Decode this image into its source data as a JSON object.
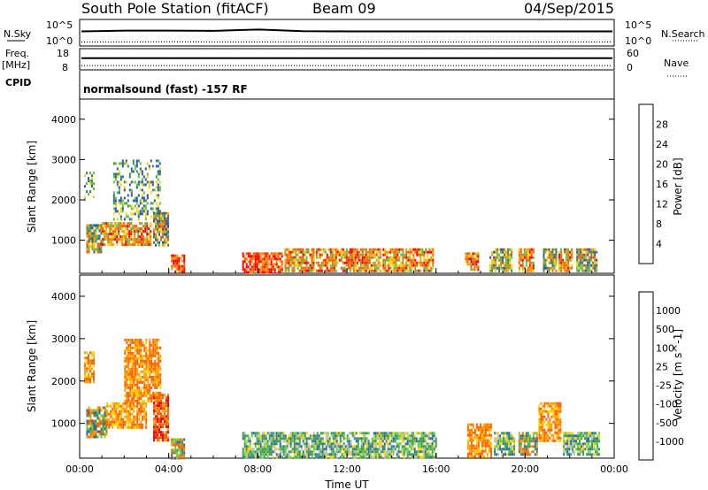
{
  "header": {
    "title": "South Pole Station (fitACF)",
    "beam": "Beam 09",
    "date": "04/Sep/2015"
  },
  "colors": {
    "power_scale": [
      "#1a1aff",
      "#2c5aa8",
      "#3a8a5c",
      "#5fbf4a",
      "#ffd200",
      "#ff9a00",
      "#ff6000",
      "#ff0000"
    ],
    "velocity_scale": [
      "#ff0000",
      "#ff6000",
      "#ffa000",
      "#ffd000",
      "#bfbfbf",
      "#5fd040",
      "#3a9a5a",
      "#2e6aa0",
      "#1a3ac0"
    ]
  },
  "chart_data": [
    {
      "type": "line",
      "name": "noise-panel",
      "left_label": "N.Sky",
      "right_label": "N.Search",
      "yticks_left": [
        "10^5",
        "10^0"
      ],
      "yticks_right": [
        "10^5",
        "10^0"
      ],
      "series": [
        {
          "style": "solid",
          "values": [
            0.55,
            0.58,
            0.58,
            0.57,
            0.62,
            0.56,
            0.55,
            0.55,
            0.55,
            0.55,
            0.55,
            0.55,
            0.55
          ]
        },
        {
          "style": "dotted",
          "values": [
            0.15,
            0.15,
            0.16,
            0.15,
            0.15,
            0.15,
            0.15,
            0.15,
            0.15,
            0.15,
            0.15,
            0.15,
            0.15
          ]
        }
      ]
    },
    {
      "type": "line",
      "name": "freq-panel",
      "left_label_1": "Freq.",
      "left_label_2": "[MHz]",
      "right_label": "Nave",
      "left_ticks": [
        "18",
        "8"
      ],
      "right_ticks": [
        "60",
        "0"
      ],
      "series": [
        {
          "style": "solid",
          "values": [
            0.55,
            0.55,
            0.55,
            0.55,
            0.55,
            0.55,
            0.55,
            0.55,
            0.55,
            0.55,
            0.55,
            0.55,
            0.55
          ]
        },
        {
          "style": "dotted",
          "values": [
            0.2,
            0.2,
            0.2,
            0.2,
            0.2,
            0.2,
            0.2,
            0.2,
            0.2,
            0.2,
            0.2,
            0.2,
            0.2
          ]
        }
      ]
    },
    {
      "type": "heatmap",
      "name": "power-panel",
      "cpid_label": "CPID",
      "program": "normalsound (fast) -157 RF",
      "ylabel": "Slant Range [km]",
      "yticks": [
        "1000",
        "2000",
        "3000",
        "4000"
      ],
      "yvalues": [
        1000,
        2000,
        3000,
        4000
      ],
      "ylim": [
        180,
        4500
      ],
      "colorbar_label": "Power [dB]",
      "colorbar_ticks": [
        "4",
        "8",
        "12",
        "16",
        "20",
        "24",
        "28"
      ],
      "blocks": [
        {
          "t0": 0.2,
          "t1": 0.6,
          "r0": 2000,
          "r1": 2700,
          "c": "scatter"
        },
        {
          "t0": 0.3,
          "t1": 1.0,
          "r0": 700,
          "r1": 1400,
          "c": "mid"
        },
        {
          "t0": 1.0,
          "t1": 3.2,
          "r0": 900,
          "r1": 1450,
          "c": "high"
        },
        {
          "t0": 1.5,
          "t1": 3.6,
          "r0": 1500,
          "r1": 3000,
          "c": "scatter"
        },
        {
          "t0": 3.3,
          "t1": 4.0,
          "r0": 900,
          "r1": 1700,
          "c": "mid"
        },
        {
          "t0": 4.1,
          "t1": 4.7,
          "r0": 200,
          "r1": 650,
          "c": "strong"
        },
        {
          "t0": 7.3,
          "t1": 9.1,
          "r0": 200,
          "r1": 700,
          "c": "strong"
        },
        {
          "t0": 9.2,
          "t1": 10.5,
          "r0": 250,
          "r1": 800,
          "c": "high"
        },
        {
          "t0": 10.6,
          "t1": 13.5,
          "r0": 250,
          "r1": 800,
          "c": "high"
        },
        {
          "t0": 13.6,
          "t1": 15.9,
          "r0": 250,
          "r1": 800,
          "c": "high"
        },
        {
          "t0": 17.3,
          "t1": 17.9,
          "r0": 250,
          "r1": 700,
          "c": "high"
        },
        {
          "t0": 18.4,
          "t1": 19.4,
          "r0": 250,
          "r1": 800,
          "c": "mid"
        },
        {
          "t0": 19.7,
          "t1": 20.4,
          "r0": 250,
          "r1": 800,
          "c": "high"
        },
        {
          "t0": 20.8,
          "t1": 21.4,
          "r0": 250,
          "r1": 800,
          "c": "mid"
        },
        {
          "t0": 21.5,
          "t1": 22.1,
          "r0": 250,
          "r1": 800,
          "c": "high"
        },
        {
          "t0": 22.3,
          "t1": 23.2,
          "r0": 250,
          "r1": 800,
          "c": "mid"
        }
      ]
    },
    {
      "type": "heatmap",
      "name": "velocity-panel",
      "ylabel": "Slant Range [km]",
      "yticks": [
        "1000",
        "2000",
        "3000",
        "4000"
      ],
      "yvalues": [
        1000,
        2000,
        3000,
        4000
      ],
      "ylim": [
        180,
        4500
      ],
      "xlabel": "Time UT",
      "xticks": [
        "00:00",
        "04:00",
        "08:00",
        "12:00",
        "16:00",
        "20:00",
        "00:00"
      ],
      "xvalues": [
        0,
        4,
        8,
        12,
        16,
        20,
        24
      ],
      "xlim": [
        0,
        24
      ],
      "colorbar_label": "Velocity [m s^-1]",
      "colorbar_ticks": [
        "1000",
        "500",
        "100",
        "25",
        "-25",
        "-100",
        "-500",
        "-1000"
      ],
      "blocks": [
        {
          "t0": 0.2,
          "t1": 0.6,
          "r0": 2000,
          "r1": 2700,
          "c": "neg"
        },
        {
          "t0": 0.3,
          "t1": 1.2,
          "r0": 700,
          "r1": 1400,
          "c": "mixed"
        },
        {
          "t0": 1.2,
          "t1": 3.0,
          "r0": 900,
          "r1": 1500,
          "c": "neg"
        },
        {
          "t0": 2.0,
          "t1": 3.6,
          "r0": 1500,
          "r1": 3000,
          "c": "neg"
        },
        {
          "t0": 3.3,
          "t1": 4.0,
          "r0": 600,
          "r1": 1700,
          "c": "strongneg"
        },
        {
          "t0": 4.1,
          "t1": 4.7,
          "r0": 200,
          "r1": 650,
          "c": "mixed"
        },
        {
          "t0": 7.3,
          "t1": 16.0,
          "r0": 200,
          "r1": 800,
          "c": "low"
        },
        {
          "t0": 17.4,
          "t1": 18.5,
          "r0": 200,
          "r1": 1000,
          "c": "neg"
        },
        {
          "t0": 18.6,
          "t1": 19.5,
          "r0": 250,
          "r1": 800,
          "c": "low"
        },
        {
          "t0": 19.7,
          "t1": 20.5,
          "r0": 250,
          "r1": 800,
          "c": "mixed"
        },
        {
          "t0": 20.6,
          "t1": 21.6,
          "r0": 600,
          "r1": 1500,
          "c": "neg"
        },
        {
          "t0": 21.7,
          "t1": 23.3,
          "r0": 250,
          "r1": 800,
          "c": "low"
        }
      ]
    }
  ]
}
